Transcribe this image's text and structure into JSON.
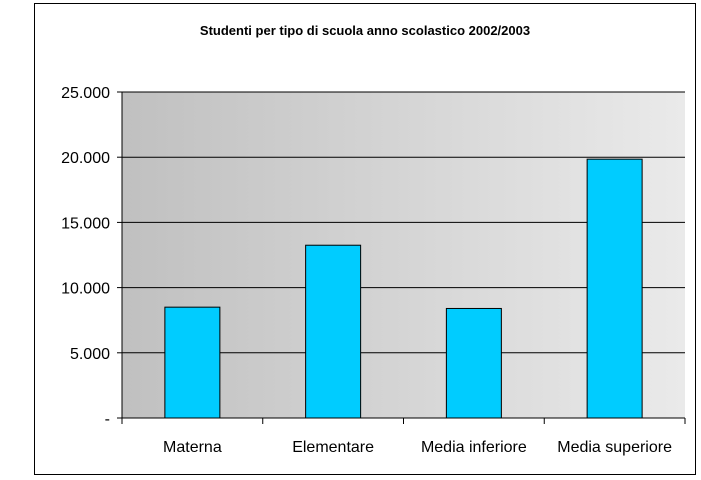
{
  "chart_data": {
    "type": "bar",
    "title": "Studenti per tipo di scuola anno scolastico 2002/2003",
    "xlabel": "",
    "ylabel": "",
    "categories": [
      "Materna",
      "Elementare",
      "Media inferiore",
      "Media superiore"
    ],
    "values": [
      8500,
      13250,
      8400,
      19850
    ],
    "ylim": [
      0,
      25000
    ],
    "y_ticks": [
      0,
      5000,
      10000,
      15000,
      20000,
      25000
    ],
    "y_tick_labels": [
      "-",
      "5.000",
      "10.000",
      "15.000",
      "20.000",
      "25.000"
    ],
    "grid": true,
    "legend": "none",
    "colors": {
      "bar_fill": "#00ccff",
      "bar_stroke": "#000000",
      "plot_bg_left": "#c0c0c0",
      "plot_bg_right": "#eaeaea",
      "gridline": "#000000"
    }
  }
}
